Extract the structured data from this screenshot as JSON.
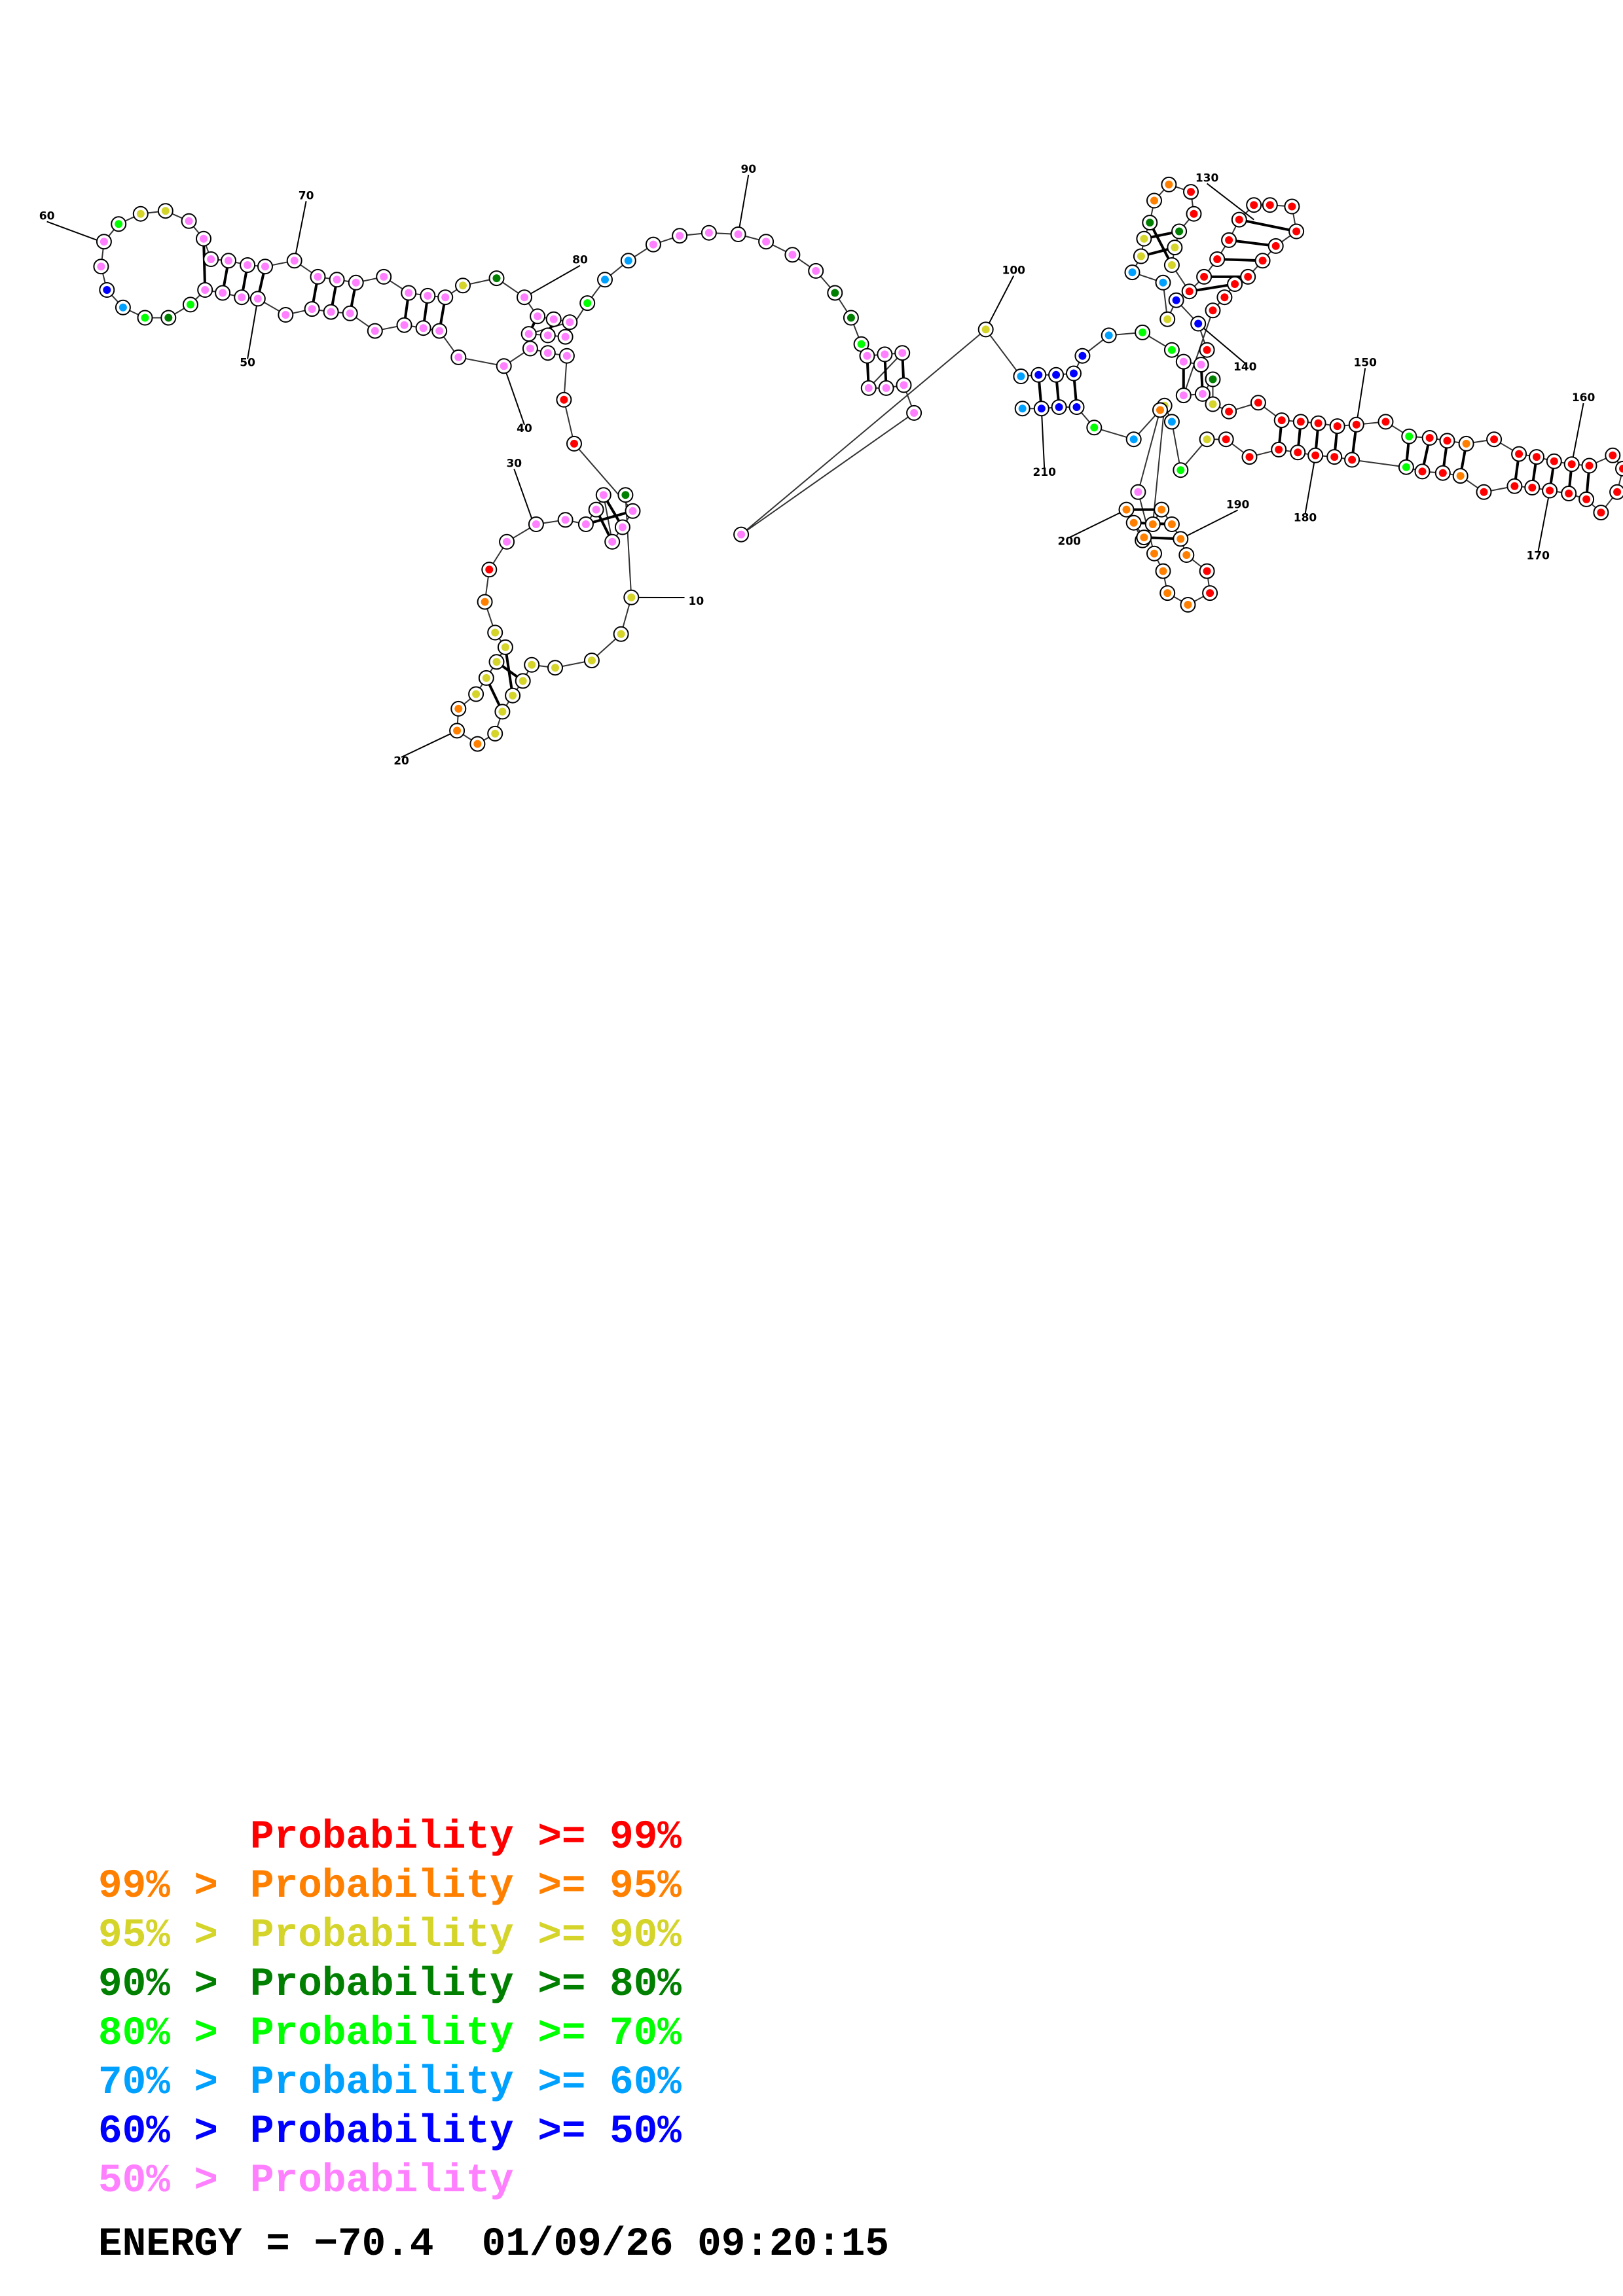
{
  "position_labels": [
    "10",
    "20",
    "30",
    "40",
    "50",
    "60",
    "70",
    "80",
    "90",
    "100",
    "130",
    "140",
    "150",
    "160",
    "170",
    "180",
    "190",
    "200",
    "210"
  ],
  "legend": [
    {
      "low": "",
      "text": "Probability >= 99%",
      "color": "#ff0000"
    },
    {
      "low": "99% >",
      "text": "Probability >= 95%",
      "color": "#ff8000"
    },
    {
      "low": "95% >",
      "text": "Probability >= 90%",
      "color": "#d4d42a"
    },
    {
      "low": "90% >",
      "text": "Probability >= 80%",
      "color": "#007f00"
    },
    {
      "low": "80% >",
      "text": "Probability >= 70%",
      "color": "#00ff00"
    },
    {
      "low": "70% >",
      "text": "Probability >= 60%",
      "color": "#00a0ff"
    },
    {
      "low": "60% >",
      "text": "Probability >= 50%",
      "color": "#0000ff"
    },
    {
      "low": "50% >",
      "text": "Probability",
      "color": "#ff80ff"
    }
  ],
  "energy_label": "ENERGY = −70.4",
  "timestamp": "01/09/26 09:20:15"
}
